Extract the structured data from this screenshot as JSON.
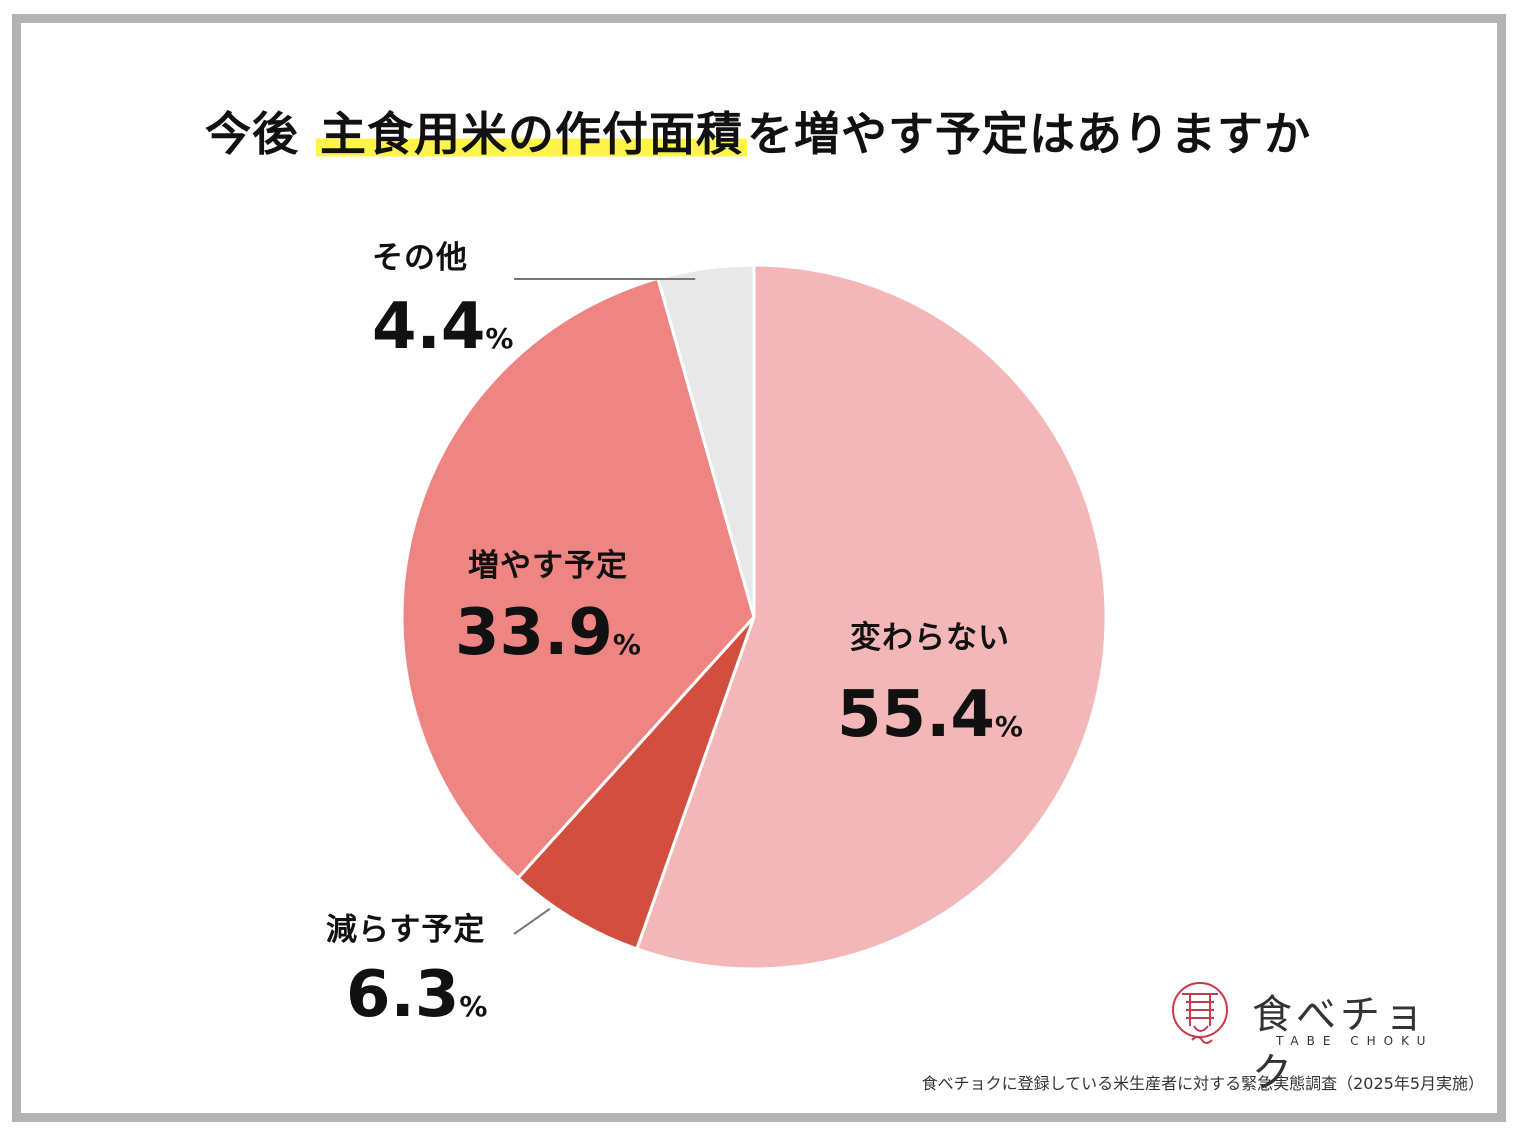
{
  "title": {
    "prefix": "今後",
    "highlight": "主食用米の作付面積",
    "suffix": "を増やす予定はありますか"
  },
  "chart_data": {
    "type": "pie",
    "title": "今後 主食用米の作付面積を増やす予定はありますか",
    "slices": [
      {
        "label": "変わらない",
        "value": 55.4,
        "display": "55.4",
        "color": "#f3b7b8"
      },
      {
        "label": "減らす予定",
        "value": 6.3,
        "display": "6.3",
        "color": "#d24f3f"
      },
      {
        "label": "増やす予定",
        "value": 33.9,
        "display": "33.9",
        "color": "#ee8582"
      },
      {
        "label": "その他",
        "value": 4.4,
        "display": "4.4",
        "color": "#e8e8e8"
      }
    ],
    "unit": "%",
    "start": "12 o'clock",
    "direction": "clockwise"
  },
  "logo": {
    "name": "食べチョク",
    "sub": "TABE CHOKU",
    "mark_color": "#c8384a"
  },
  "source": "食べチョクに登録している米生産者に対する緊急実態調査（2025年5月実施）"
}
